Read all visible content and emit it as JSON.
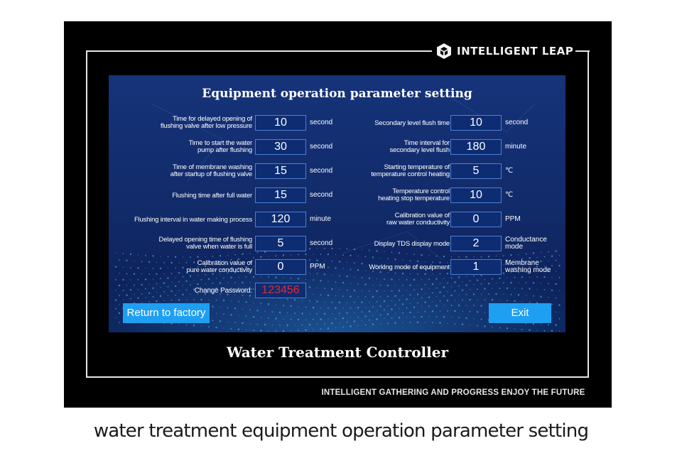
{
  "brand": {
    "name": "INTELLIGENT LEAP",
    "icon": "cube-logo-icon"
  },
  "screen": {
    "title": "Equipment operation parameter setting",
    "left_params": [
      {
        "label_line1": "Time for delayed opening of",
        "label_line2": "flushing valve after low pressure",
        "value": "10",
        "unit_line1": "second",
        "unit_line2": ""
      },
      {
        "label_line1": "Time to start the water",
        "label_line2": "pump after flushing",
        "value": "30",
        "unit_line1": "second",
        "unit_line2": ""
      },
      {
        "label_line1": "Time of membrane washing",
        "label_line2": "after startup of flushing valve",
        "value": "15",
        "unit_line1": "second",
        "unit_line2": ""
      },
      {
        "label_line1": "Flushing time after full water",
        "label_line2": "",
        "value": "15",
        "unit_line1": "second",
        "unit_line2": ""
      },
      {
        "label_line1": "Flushing interval in water making process",
        "label_line2": "",
        "value": "120",
        "unit_line1": "minute",
        "unit_line2": ""
      },
      {
        "label_line1": "Delayed opening time of flushing",
        "label_line2": "valve when water is full",
        "value": "5",
        "unit_line1": "second",
        "unit_line2": ""
      },
      {
        "label_line1": "Calibration value of",
        "label_line2": "pure water conductivity",
        "value": "0",
        "unit_line1": "PPM",
        "unit_line2": ""
      }
    ],
    "right_params": [
      {
        "label_line1": "Secondary  level flush time",
        "label_line2": "",
        "value": "10",
        "unit_line1": "second",
        "unit_line2": ""
      },
      {
        "label_line1": "Time interval for",
        "label_line2": "secondary level flush",
        "value": "180",
        "unit_line1": "minute",
        "unit_line2": ""
      },
      {
        "label_line1": "Starting temperature of",
        "label_line2": "temperature control heating",
        "value": "5",
        "unit_line1": "℃",
        "unit_line2": ""
      },
      {
        "label_line1": "Temperature control",
        "label_line2": "heating stop temperature",
        "value": "10",
        "unit_line1": "℃",
        "unit_line2": ""
      },
      {
        "label_line1": "Calibration value of",
        "label_line2": "raw water conductivity",
        "value": "0",
        "unit_line1": "PPM",
        "unit_line2": ""
      },
      {
        "label_line1": "Display TDS display mode",
        "label_line2": "",
        "value": "2",
        "unit_line1": "Conductance",
        "unit_line2": "mode"
      },
      {
        "label_line1": "Working mode of equipment",
        "label_line2": "",
        "value": "1",
        "unit_line1": "Membrane",
        "unit_line2": "washing mode"
      }
    ],
    "password": {
      "label": "Change Password:",
      "value": "123456",
      "color": "#e22b2b"
    },
    "buttons": {
      "factory": "Return to factory",
      "exit": "Exit"
    },
    "colors": {
      "button": "#1e9ff2",
      "screen_bg": "#13307a",
      "field_border": "#4d7fd0"
    }
  },
  "device": {
    "model_title": "Water Treatment Controller",
    "slogan": "INTELLIGENT GATHERING AND PROGRESS ENJOY THE FUTURE"
  },
  "caption": "water treatment equipment operation parameter setting"
}
